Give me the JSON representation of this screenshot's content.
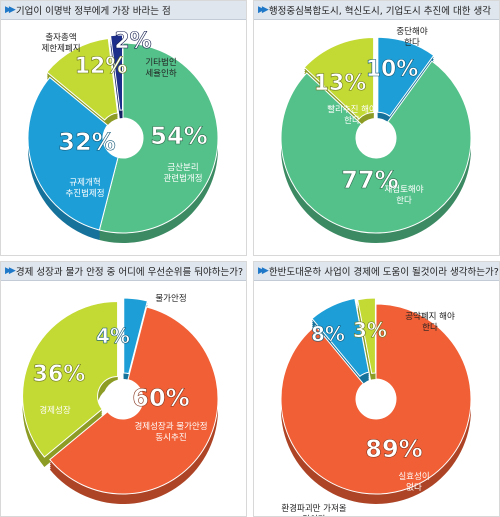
{
  "chart_data": [
    {
      "type": "pie",
      "title": "기업이 이명박 정부에게 가장 바라는 점",
      "colors": [
        "#54c08a",
        "#1e9ed6",
        "#c3d934",
        "#1c2e8a"
      ],
      "slices": [
        {
          "label": "금산분리 관련법개정",
          "pct_text": "54%",
          "value": 54
        },
        {
          "label": "규제개혁 추진법제정",
          "pct_text": "32%",
          "value": 32
        },
        {
          "label": "출자총액 제한제폐지",
          "pct_text": "12%",
          "value": 12
        },
        {
          "label": "기타법인 세율인하",
          "pct_text": "2%",
          "value": 2
        }
      ]
    },
    {
      "type": "pie",
      "title": "행정중심복합도시, 혁신도시, 기업도시 추진에 대한 생각",
      "colors": [
        "#54c08a",
        "#c3d934",
        "#1e9ed6"
      ],
      "slices": [
        {
          "label": "재검토해야 한다",
          "pct_text": "77%",
          "value": 77
        },
        {
          "label": "빨리추진 해야 한다",
          "pct_text": "13%",
          "value": 13
        },
        {
          "label": "중단해야 한다",
          "pct_text": "10%",
          "value": 10
        }
      ]
    },
    {
      "type": "pie",
      "title": "경제 성장과 물가 안정 중 어디에 우선순위를 둬야하는가?",
      "colors": [
        "#f05f35",
        "#c3d934",
        "#1e9ed6"
      ],
      "slices": [
        {
          "label": "경제성장과 물가안정 동시추진",
          "pct_text": "60%",
          "value": 60
        },
        {
          "label": "경제성장",
          "pct_text": "36%",
          "value": 36
        },
        {
          "label": "물가안정",
          "pct_text": "4%",
          "value": 4
        }
      ]
    },
    {
      "type": "pie",
      "title": "한반도대운하 사업이 경제에 도움이 될것이라 생각하는가?",
      "colors": [
        "#f05f35",
        "#1e9ed6",
        "#c3d934"
      ],
      "slices": [
        {
          "label": "실효성이 없다",
          "pct_text": "89%",
          "value": 89
        },
        {
          "label": "환경파괴만 가져올 것이다",
          "pct_text": "8%",
          "value": 8
        },
        {
          "label": "공약폐지 해야 한다",
          "pct_text": "3%",
          "value": 3
        }
      ]
    }
  ]
}
